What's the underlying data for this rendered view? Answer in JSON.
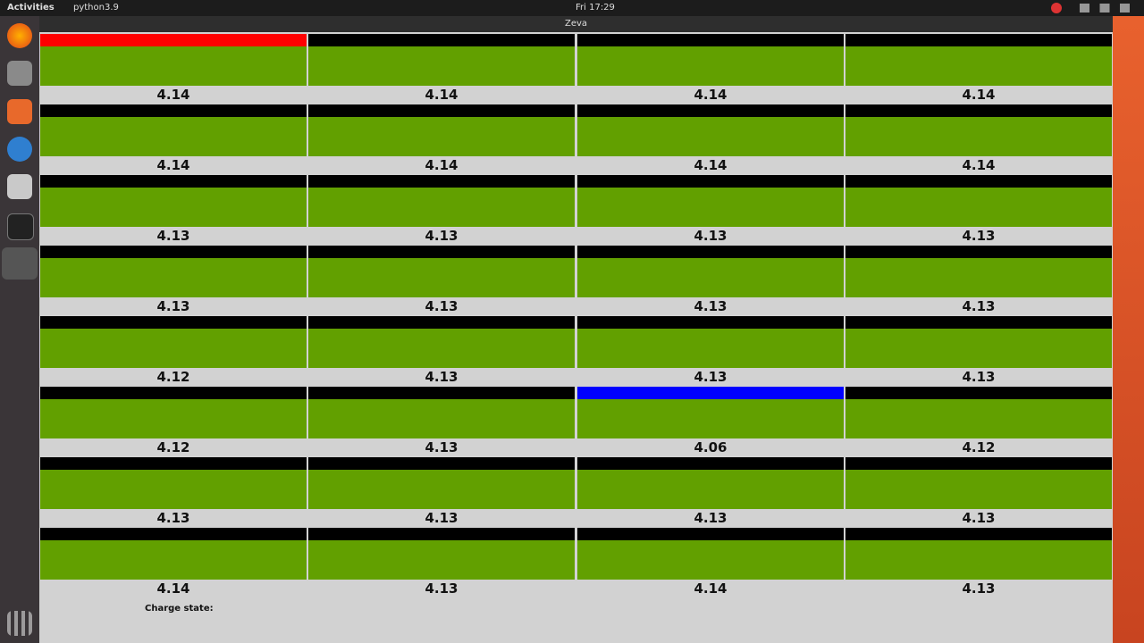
{
  "topbar": {
    "activities": "Activities",
    "app_menu": "python3.9",
    "clock": "Fri 17:29"
  },
  "window": {
    "title": "Zeva",
    "footer_label": "Charge state:"
  },
  "grid": {
    "columns": 4
  },
  "cells": [
    {
      "voltage": "4.14",
      "bar_color": "#ff0000"
    },
    {
      "voltage": "4.14"
    },
    {
      "voltage": "4.14"
    },
    {
      "voltage": "4.14"
    },
    {
      "voltage": "4.14"
    },
    {
      "voltage": "4.14"
    },
    {
      "voltage": "4.14"
    },
    {
      "voltage": "4.14"
    },
    {
      "voltage": "4.13"
    },
    {
      "voltage": "4.13"
    },
    {
      "voltage": "4.13"
    },
    {
      "voltage": "4.13"
    },
    {
      "voltage": "4.13"
    },
    {
      "voltage": "4.13"
    },
    {
      "voltage": "4.13"
    },
    {
      "voltage": "4.13"
    },
    {
      "voltage": "4.12"
    },
    {
      "voltage": "4.13"
    },
    {
      "voltage": "4.13"
    },
    {
      "voltage": "4.13"
    },
    {
      "voltage": "4.12"
    },
    {
      "voltage": "4.13"
    },
    {
      "voltage": "4.06",
      "bar_color": "#0000ff"
    },
    {
      "voltage": "4.12"
    },
    {
      "voltage": "4.13"
    },
    {
      "voltage": "4.13"
    },
    {
      "voltage": "4.13"
    },
    {
      "voltage": "4.13"
    },
    {
      "voltage": "4.14"
    },
    {
      "voltage": "4.13"
    },
    {
      "voltage": "4.14"
    },
    {
      "voltage": "4.13"
    }
  ]
}
